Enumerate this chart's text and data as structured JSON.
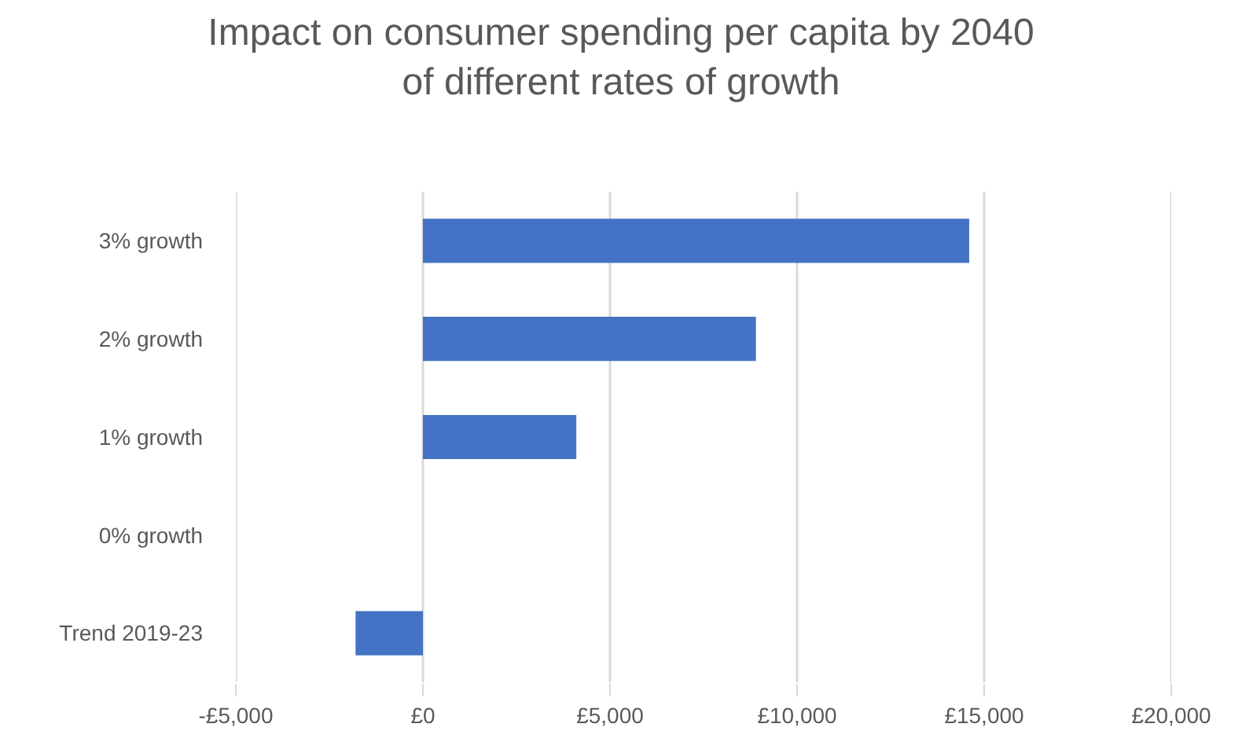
{
  "chart_data": {
    "type": "bar",
    "orientation": "horizontal",
    "title": "Impact on consumer spending per capita by 2040\nof different rates of growth",
    "categories": [
      "3% growth",
      "2% growth",
      "1% growth",
      "0% growth",
      "Trend 2019-23"
    ],
    "values": [
      14600,
      8900,
      4100,
      0,
      -1800
    ],
    "color": "#4472c4",
    "xlim": [
      -5000,
      20000
    ],
    "xticks": [
      {
        "value": -5000,
        "label": "-£5,000"
      },
      {
        "value": 0,
        "label": "£0"
      },
      {
        "value": 5000,
        "label": "£5,000"
      },
      {
        "value": 10000,
        "label": "£10,000"
      },
      {
        "value": 15000,
        "label": "£15,000"
      },
      {
        "value": 20000,
        "label": "£20,000"
      }
    ],
    "grid": "x"
  }
}
